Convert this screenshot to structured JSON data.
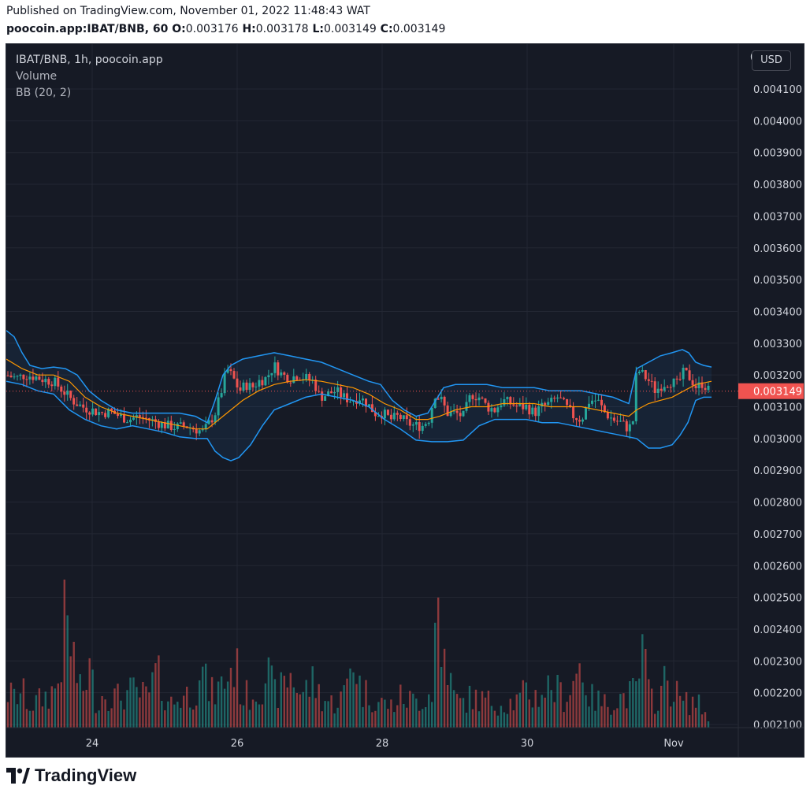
{
  "header": {
    "published": "Published on TradingView.com, November 01, 2022 11:48:43 WAT",
    "symbol": "poocoin.app:IBAT/BNB, 60",
    "ohlc": [
      {
        "key": "O:",
        "value": "0.003176"
      },
      {
        "key": "H:",
        "value": "0.003178"
      },
      {
        "key": "L:",
        "value": "0.003149"
      },
      {
        "key": "C:",
        "value": "0.003149"
      }
    ]
  },
  "legend": {
    "title": "IBAT/BNB, 1h, poocoin.app",
    "volume": "Volume",
    "bb": "BB (20, 2)"
  },
  "currency_button": "USD",
  "footer": {
    "brand": "TradingView"
  },
  "colors": {
    "background": "#161a25",
    "grid": "#232733",
    "up": "#26a69a",
    "down": "#ef5350",
    "bb_band": "#2196f3",
    "bb_basis": "#ff9800",
    "last_price_label": "#f05350",
    "axis_text": "#d1d4dc"
  },
  "chart_data": {
    "type": "candlestick",
    "interval": "1h",
    "y_axis": {
      "ticks": [
        "0.004100",
        "0.004000",
        "0.003900",
        "0.003800",
        "0.003700",
        "0.003600",
        "0.003500",
        "0.003400",
        "0.003300",
        "0.003200",
        "0.003100",
        "0.003000",
        "0.002900",
        "0.002800",
        "0.002700",
        "0.002600",
        "0.002500",
        "0.002400",
        "0.002300",
        "0.002200",
        "0.002100"
      ],
      "partial_top_label": "0",
      "range": [
        0.00208,
        0.00422
      ]
    },
    "x_axis": {
      "ticks": [
        "24",
        "26",
        "28",
        "30",
        "Nov"
      ]
    },
    "last_price": "0.003149",
    "bollinger_bands": {
      "upper": [
        [
          0,
          0.00334
        ],
        [
          10,
          0.00332
        ],
        [
          20,
          0.00327
        ],
        [
          30,
          0.00323
        ],
        [
          45,
          0.00322
        ],
        [
          60,
          0.003225
        ],
        [
          75,
          0.00322
        ],
        [
          90,
          0.0032
        ],
        [
          105,
          0.00315
        ],
        [
          120,
          0.00312
        ],
        [
          140,
          0.00309
        ],
        [
          160,
          0.00308
        ],
        [
          180,
          0.00308
        ],
        [
          200,
          0.00308
        ],
        [
          220,
          0.00308
        ],
        [
          240,
          0.00307
        ],
        [
          255,
          0.00305
        ],
        [
          265,
          0.00312
        ],
        [
          275,
          0.0032
        ],
        [
          285,
          0.00323
        ],
        [
          300,
          0.00325
        ],
        [
          320,
          0.00326
        ],
        [
          340,
          0.00327
        ],
        [
          360,
          0.00326
        ],
        [
          380,
          0.00325
        ],
        [
          400,
          0.00324
        ],
        [
          420,
          0.00322
        ],
        [
          440,
          0.0032
        ],
        [
          460,
          0.00318
        ],
        [
          475,
          0.00317
        ],
        [
          490,
          0.00312
        ],
        [
          505,
          0.00309
        ],
        [
          520,
          0.00307
        ],
        [
          535,
          0.00308
        ],
        [
          545,
          0.00312
        ],
        [
          555,
          0.00316
        ],
        [
          570,
          0.00317
        ],
        [
          590,
          0.00317
        ],
        [
          610,
          0.00317
        ],
        [
          630,
          0.00316
        ],
        [
          650,
          0.00316
        ],
        [
          670,
          0.00316
        ],
        [
          690,
          0.00315
        ],
        [
          710,
          0.00315
        ],
        [
          730,
          0.00315
        ],
        [
          750,
          0.00314
        ],
        [
          770,
          0.00313
        ],
        [
          790,
          0.00311
        ],
        [
          800,
          0.00322
        ],
        [
          815,
          0.00324
        ],
        [
          830,
          0.00326
        ],
        [
          845,
          0.00327
        ],
        [
          858,
          0.00328
        ],
        [
          866,
          0.00327
        ],
        [
          875,
          0.00324
        ],
        [
          885,
          0.00323
        ],
        [
          895,
          0.003225
        ]
      ],
      "basis": [
        [
          0,
          0.00325
        ],
        [
          20,
          0.00322
        ],
        [
          40,
          0.0032
        ],
        [
          60,
          0.0032
        ],
        [
          80,
          0.00318
        ],
        [
          100,
          0.00313
        ],
        [
          120,
          0.0031
        ],
        [
          140,
          0.00308
        ],
        [
          160,
          0.00307
        ],
        [
          180,
          0.00306
        ],
        [
          200,
          0.00305
        ],
        [
          220,
          0.00304
        ],
        [
          240,
          0.00303
        ],
        [
          255,
          0.00303
        ],
        [
          270,
          0.00306
        ],
        [
          285,
          0.00309
        ],
        [
          300,
          0.00312
        ],
        [
          320,
          0.00315
        ],
        [
          340,
          0.00317
        ],
        [
          360,
          0.00318
        ],
        [
          380,
          0.003185
        ],
        [
          400,
          0.00318
        ],
        [
          420,
          0.00317
        ],
        [
          440,
          0.00316
        ],
        [
          460,
          0.00314
        ],
        [
          480,
          0.00311
        ],
        [
          500,
          0.00309
        ],
        [
          520,
          0.00306
        ],
        [
          535,
          0.00306
        ],
        [
          550,
          0.00307
        ],
        [
          570,
          0.00309
        ],
        [
          590,
          0.0031
        ],
        [
          610,
          0.0031
        ],
        [
          630,
          0.00311
        ],
        [
          650,
          0.00311
        ],
        [
          670,
          0.00311
        ],
        [
          690,
          0.0031
        ],
        [
          710,
          0.0031
        ],
        [
          730,
          0.0031
        ],
        [
          750,
          0.00309
        ],
        [
          770,
          0.00308
        ],
        [
          790,
          0.00307
        ],
        [
          800,
          0.00309
        ],
        [
          815,
          0.00311
        ],
        [
          830,
          0.00312
        ],
        [
          845,
          0.00313
        ],
        [
          860,
          0.00315
        ],
        [
          875,
          0.00317
        ],
        [
          895,
          0.00318
        ]
      ],
      "lower": [
        [
          0,
          0.00318
        ],
        [
          20,
          0.00317
        ],
        [
          40,
          0.00315
        ],
        [
          60,
          0.00314
        ],
        [
          80,
          0.00309
        ],
        [
          100,
          0.00306
        ],
        [
          120,
          0.00304
        ],
        [
          140,
          0.00303
        ],
        [
          160,
          0.00304
        ],
        [
          180,
          0.00303
        ],
        [
          200,
          0.00302
        ],
        [
          220,
          0.003005
        ],
        [
          240,
          0.003
        ],
        [
          255,
          0.003
        ],
        [
          265,
          0.00296
        ],
        [
          275,
          0.00294
        ],
        [
          285,
          0.00293
        ],
        [
          295,
          0.00294
        ],
        [
          310,
          0.00298
        ],
        [
          325,
          0.00304
        ],
        [
          340,
          0.00309
        ],
        [
          360,
          0.00311
        ],
        [
          380,
          0.00313
        ],
        [
          400,
          0.00314
        ],
        [
          420,
          0.00313
        ],
        [
          440,
          0.00312
        ],
        [
          460,
          0.0031
        ],
        [
          480,
          0.00306
        ],
        [
          500,
          0.00303
        ],
        [
          520,
          0.002995
        ],
        [
          540,
          0.00299
        ],
        [
          560,
          0.00299
        ],
        [
          580,
          0.002995
        ],
        [
          600,
          0.00304
        ],
        [
          620,
          0.00306
        ],
        [
          640,
          0.00306
        ],
        [
          660,
          0.00306
        ],
        [
          680,
          0.00305
        ],
        [
          700,
          0.00305
        ],
        [
          720,
          0.00304
        ],
        [
          740,
          0.00303
        ],
        [
          760,
          0.00302
        ],
        [
          780,
          0.00301
        ],
        [
          800,
          0.003
        ],
        [
          815,
          0.00297
        ],
        [
          830,
          0.00297
        ],
        [
          845,
          0.00298
        ],
        [
          855,
          0.00301
        ],
        [
          865,
          0.00305
        ],
        [
          875,
          0.00312
        ],
        [
          885,
          0.00313
        ],
        [
          895,
          0.00313
        ]
      ]
    },
    "price_path": [
      [
        0,
        0.0032
      ],
      [
        12,
        0.00319
      ],
      [
        24,
        0.0032
      ],
      [
        36,
        0.003195
      ],
      [
        48,
        0.003185
      ],
      [
        60,
        0.00318
      ],
      [
        72,
        0.00315
      ],
      [
        84,
        0.00312
      ],
      [
        96,
        0.0031
      ],
      [
        108,
        0.00309
      ],
      [
        120,
        0.00308
      ],
      [
        132,
        0.003085
      ],
      [
        144,
        0.00307
      ],
      [
        156,
        0.00306
      ],
      [
        168,
        0.00307
      ],
      [
        180,
        0.00306
      ],
      [
        192,
        0.00305
      ],
      [
        204,
        0.00304
      ],
      [
        216,
        0.003035
      ],
      [
        228,
        0.00304
      ],
      [
        240,
        0.00303
      ],
      [
        250,
        0.00302
      ],
      [
        258,
        0.00305
      ],
      [
        265,
        0.00308
      ],
      [
        272,
        0.00314
      ],
      [
        280,
        0.00322
      ],
      [
        288,
        0.00319
      ],
      [
        296,
        0.00315
      ],
      [
        304,
        0.00317
      ],
      [
        312,
        0.00316
      ],
      [
        320,
        0.00318
      ],
      [
        330,
        0.00319
      ],
      [
        340,
        0.00323
      ],
      [
        350,
        0.0032
      ],
      [
        360,
        0.00319
      ],
      [
        370,
        0.0032
      ],
      [
        380,
        0.00319
      ],
      [
        390,
        0.00318
      ],
      [
        398,
        0.00313
      ],
      [
        408,
        0.00314
      ],
      [
        418,
        0.00315
      ],
      [
        428,
        0.00313
      ],
      [
        438,
        0.00312
      ],
      [
        448,
        0.00313
      ],
      [
        458,
        0.00311
      ],
      [
        468,
        0.00308
      ],
      [
        478,
        0.00308
      ],
      [
        488,
        0.00306
      ],
      [
        498,
        0.00307
      ],
      [
        508,
        0.00305
      ],
      [
        518,
        0.00304
      ],
      [
        528,
        0.00304
      ],
      [
        536,
        0.00306
      ],
      [
        544,
        0.00314
      ],
      [
        552,
        0.00312
      ],
      [
        560,
        0.00308
      ],
      [
        570,
        0.00308
      ],
      [
        580,
        0.00307
      ],
      [
        590,
        0.00314
      ],
      [
        600,
        0.00313
      ],
      [
        610,
        0.0031
      ],
      [
        620,
        0.00309
      ],
      [
        630,
        0.00312
      ],
      [
        640,
        0.00311
      ],
      [
        650,
        0.0031
      ],
      [
        660,
        0.0031
      ],
      [
        670,
        0.00308
      ],
      [
        680,
        0.0031
      ],
      [
        690,
        0.00311
      ],
      [
        700,
        0.00313
      ],
      [
        710,
        0.0031
      ],
      [
        720,
        0.00307
      ],
      [
        730,
        0.00306
      ],
      [
        740,
        0.00312
      ],
      [
        750,
        0.00312
      ],
      [
        760,
        0.00308
      ],
      [
        770,
        0.00306
      ],
      [
        780,
        0.00305
      ],
      [
        790,
        0.00303
      ],
      [
        796,
        0.00306
      ],
      [
        800,
        0.00322
      ],
      [
        808,
        0.0032
      ],
      [
        816,
        0.00318
      ],
      [
        824,
        0.00315
      ],
      [
        832,
        0.00317
      ],
      [
        842,
        0.00318
      ],
      [
        852,
        0.00317
      ],
      [
        860,
        0.00321
      ],
      [
        868,
        0.00319
      ],
      [
        876,
        0.00316
      ],
      [
        884,
        0.003175
      ],
      [
        892,
        0.003149
      ]
    ],
    "volume_path": [
      [
        0,
        0.3
      ],
      [
        10,
        0.25
      ],
      [
        20,
        0.3
      ],
      [
        30,
        0.18
      ],
      [
        40,
        0.22
      ],
      [
        55,
        0.28
      ],
      [
        65,
        0.35
      ],
      [
        75,
        0.9
      ],
      [
        85,
        0.6
      ],
      [
        95,
        0.25
      ],
      [
        105,
        0.5
      ],
      [
        115,
        0.2
      ],
      [
        125,
        0.3
      ],
      [
        140,
        0.25
      ],
      [
        160,
        0.3
      ],
      [
        180,
        0.25
      ],
      [
        190,
        0.45
      ],
      [
        200,
        0.3
      ],
      [
        210,
        0.2
      ],
      [
        220,
        0.25
      ],
      [
        240,
        0.3
      ],
      [
        245,
        0.55
      ],
      [
        252,
        0.38
      ],
      [
        260,
        0.28
      ],
      [
        270,
        0.32
      ],
      [
        280,
        0.42
      ],
      [
        290,
        0.55
      ],
      [
        300,
        0.25
      ],
      [
        310,
        0.28
      ],
      [
        320,
        0.32
      ],
      [
        330,
        0.48
      ],
      [
        340,
        0.28
      ],
      [
        350,
        0.32
      ],
      [
        360,
        0.45
      ],
      [
        375,
        0.28
      ],
      [
        390,
        0.38
      ],
      [
        400,
        0.25
      ],
      [
        415,
        0.2
      ],
      [
        430,
        0.28
      ],
      [
        440,
        0.65
      ],
      [
        450,
        0.3
      ],
      [
        460,
        0.28
      ],
      [
        470,
        0.22
      ],
      [
        480,
        0.2
      ],
      [
        490,
        0.18
      ],
      [
        500,
        0.25
      ],
      [
        520,
        0.22
      ],
      [
        530,
        0.25
      ],
      [
        540,
        0.3
      ],
      [
        545,
        0.9
      ],
      [
        548,
        1.0
      ],
      [
        552,
        0.5
      ],
      [
        558,
        0.7
      ],
      [
        565,
        0.3
      ],
      [
        575,
        0.2
      ],
      [
        590,
        0.25
      ],
      [
        610,
        0.22
      ],
      [
        630,
        0.2
      ],
      [
        650,
        0.22
      ],
      [
        660,
        0.3
      ],
      [
        670,
        0.25
      ],
      [
        690,
        0.35
      ],
      [
        710,
        0.25
      ],
      [
        730,
        0.55
      ],
      [
        740,
        0.25
      ],
      [
        760,
        0.2
      ],
      [
        780,
        0.25
      ],
      [
        800,
        0.3
      ],
      [
        808,
        0.65
      ],
      [
        815,
        0.28
      ],
      [
        825,
        0.22
      ],
      [
        838,
        0.4
      ],
      [
        848,
        0.3
      ],
      [
        860,
        0.2
      ],
      [
        875,
        0.22
      ],
      [
        895,
        0.06
      ]
    ]
  }
}
